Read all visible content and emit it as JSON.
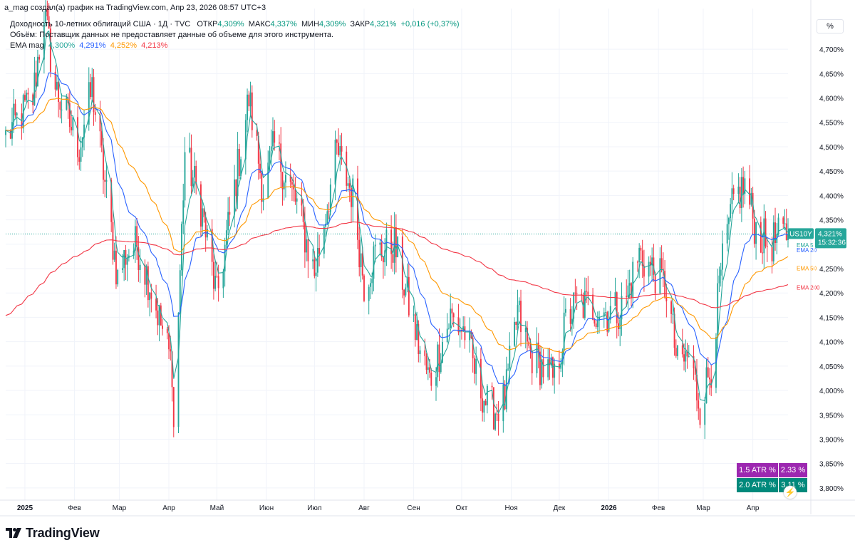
{
  "header": {
    "author_line": "a_mag создал(а) график на TradingView.com, Апр 23, 2026 08:57 UTC+3"
  },
  "legend": {
    "symbol_title": "Доходность 10-летних облигаций США · 1Д · TVC",
    "open_label": "ОТКР",
    "open_value": "4,309%",
    "high_label": "МАКС",
    "high_value": "4,337%",
    "low_label": "МИН",
    "low_value": "4,309%",
    "close_label": "ЗАКР",
    "close_value": "4,321%",
    "change_value": "+0,016 (+0,37%)",
    "volume_note": "Объём: Поставщик данных не предоставляет данные об объеме для этого инструмента.",
    "ema_name": "EMA mag",
    "ema_values": [
      "4,300%",
      "4,291%",
      "4,252%",
      "4,213%"
    ]
  },
  "price_scale": {
    "unit_button": "%",
    "ticks": [
      "4,700%",
      "4,650%",
      "4,600%",
      "4,550%",
      "4,500%",
      "4,450%",
      "4,400%",
      "4,350%",
      "4,300%",
      "4,250%",
      "4,200%",
      "4,150%",
      "4,100%",
      "4,050%",
      "4,000%",
      "3,950%",
      "3,900%",
      "3,850%",
      "3,800%"
    ],
    "symbol_badge": "US10Y",
    "last_price": "4,321%",
    "countdown": "15:32:36",
    "ema_badges": [
      "EMA 5",
      "EMA 20",
      "EMA 50",
      "EMA 200"
    ]
  },
  "time_scale": {
    "labels": [
      "2025",
      "Фев",
      "Мар",
      "Апр",
      "Май",
      "Июн",
      "Июл",
      "Авг",
      "Сен",
      "Окт",
      "Ноя",
      "Дек",
      "2026",
      "Фев",
      "Мар",
      "Апр",
      "Май"
    ]
  },
  "atr_table": {
    "rows": [
      {
        "label": "1.5 ATR %",
        "value": "2.33 %"
      },
      {
        "label": "2.0 ATR %",
        "value": "3.11 %"
      }
    ]
  },
  "footer": {
    "brand": "TradingView"
  },
  "colors": {
    "up": "#26a69a",
    "down": "#f23645",
    "ema5": "#26a69a",
    "ema20": "#2962ff",
    "ema50": "#ff9800",
    "ema200": "#f23645",
    "atr_purple": "#9c27b0",
    "atr_teal": "#00897b"
  },
  "chart_data": {
    "type": "candlestick",
    "title": "Доходность 10-летних облигаций США · 1Д · TVC",
    "ylabel": "%",
    "ylim": [
      3.775,
      4.725
    ],
    "y_scale": "linear",
    "grid": true,
    "x_range": [
      "2024-12-20",
      "2026-04-23"
    ],
    "last_close": 4.321,
    "anchors": [
      {
        "date": "2024-12-20",
        "value": 4.52
      },
      {
        "date": "2025-01-06",
        "value": 4.6
      },
      {
        "date": "2025-01-13",
        "value": 4.78
      },
      {
        "date": "2025-01-20",
        "value": 4.62
      },
      {
        "date": "2025-02-04",
        "value": 4.5
      },
      {
        "date": "2025-02-12",
        "value": 4.62
      },
      {
        "date": "2025-02-28",
        "value": 4.23
      },
      {
        "date": "2025-03-05",
        "value": 4.28
      },
      {
        "date": "2025-03-12",
        "value": 4.3
      },
      {
        "date": "2025-03-20",
        "value": 4.22
      },
      {
        "date": "2025-04-03",
        "value": 4.05
      },
      {
        "date": "2025-04-04",
        "value": 3.92
      },
      {
        "date": "2025-04-11",
        "value": 4.49
      },
      {
        "date": "2025-04-21",
        "value": 4.38
      },
      {
        "date": "2025-05-01",
        "value": 4.19
      },
      {
        "date": "2025-05-21",
        "value": 4.6
      },
      {
        "date": "2025-05-30",
        "value": 4.41
      },
      {
        "date": "2025-06-06",
        "value": 4.5
      },
      {
        "date": "2025-06-20",
        "value": 4.38
      },
      {
        "date": "2025-07-01",
        "value": 4.24
      },
      {
        "date": "2025-07-15",
        "value": 4.49
      },
      {
        "date": "2025-07-25",
        "value": 4.4
      },
      {
        "date": "2025-08-01",
        "value": 4.22
      },
      {
        "date": "2025-08-08",
        "value": 4.28
      },
      {
        "date": "2025-08-20",
        "value": 4.3
      },
      {
        "date": "2025-09-05",
        "value": 4.08
      },
      {
        "date": "2025-09-11",
        "value": 4.02
      },
      {
        "date": "2025-09-24",
        "value": 4.15
      },
      {
        "date": "2025-10-03",
        "value": 4.12
      },
      {
        "date": "2025-10-10",
        "value": 4.03
      },
      {
        "date": "2025-10-17",
        "value": 3.97
      },
      {
        "date": "2025-10-22",
        "value": 3.96
      },
      {
        "date": "2025-10-28",
        "value": 3.98
      },
      {
        "date": "2025-11-05",
        "value": 4.16
      },
      {
        "date": "2025-11-12",
        "value": 4.08
      },
      {
        "date": "2025-11-28",
        "value": 4.02
      },
      {
        "date": "2025-12-05",
        "value": 4.14
      },
      {
        "date": "2025-12-12",
        "value": 4.18
      },
      {
        "date": "2025-12-31",
        "value": 4.16
      },
      {
        "date": "2026-01-10",
        "value": 4.17
      },
      {
        "date": "2026-01-20",
        "value": 4.28
      },
      {
        "date": "2026-01-30",
        "value": 4.24
      },
      {
        "date": "2026-02-06",
        "value": 4.21
      },
      {
        "date": "2026-02-13",
        "value": 4.05
      },
      {
        "date": "2026-02-20",
        "value": 4.07
      },
      {
        "date": "2026-02-27",
        "value": 3.97
      },
      {
        "date": "2026-03-06",
        "value": 4.05
      },
      {
        "date": "2026-03-12",
        "value": 4.24
      },
      {
        "date": "2026-03-20",
        "value": 4.39
      },
      {
        "date": "2026-03-27",
        "value": 4.42
      },
      {
        "date": "2026-04-03",
        "value": 4.33
      },
      {
        "date": "2026-04-10",
        "value": 4.3
      },
      {
        "date": "2026-04-23",
        "value": 4.321
      }
    ],
    "ema_periods": [
      5,
      20,
      50,
      200
    ],
    "ema_last": {
      "5": 4.3,
      "20": 4.291,
      "50": 4.252,
      "200": 4.213
    }
  }
}
